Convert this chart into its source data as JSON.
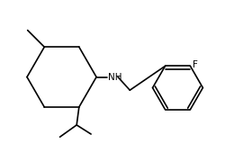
{
  "bg_color": "#ffffff",
  "line_color": "#000000",
  "label_color": "#000000",
  "nh_label": "NH",
  "f_label": "F",
  "figsize": [
    2.7,
    1.8
  ],
  "dpi": 100,
  "lw": 1.2
}
